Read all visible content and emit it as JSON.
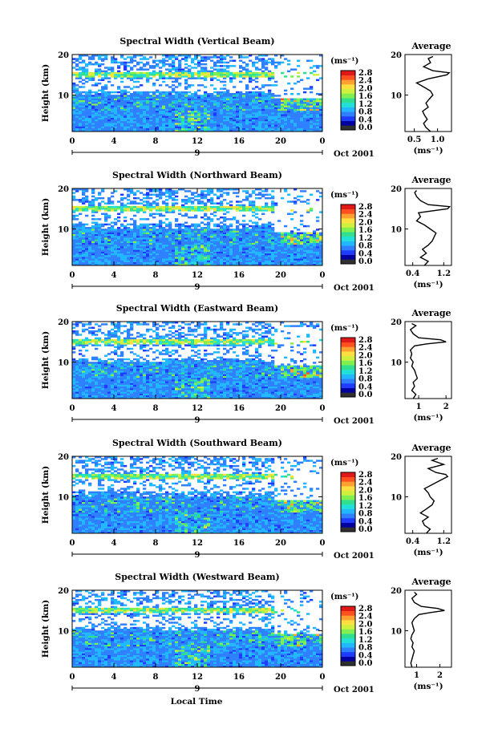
{
  "figure": {
    "xlabel": "Local Time",
    "panels": [
      {
        "title": "Spectral Width (Vertical Beam)",
        "avg_title": "Average",
        "avg_ticks": [
          "0.5",
          "1.0"
        ],
        "avg_xlabel": "(ms⁻¹)"
      },
      {
        "title": "Spectral Width (Northward Beam)",
        "avg_title": "Average",
        "avg_ticks": [
          "0.4",
          "1.2"
        ],
        "avg_xlabel": "(ms⁻¹)"
      },
      {
        "title": "Spectral Width (Eastward Beam)",
        "avg_title": "Average",
        "avg_ticks": [
          "1",
          "2"
        ],
        "avg_xlabel": "(ms⁻¹)"
      },
      {
        "title": "Spectral Width (Southward Beam)",
        "avg_title": "Average",
        "avg_ticks": [
          "0.4",
          "1.2"
        ],
        "avg_xlabel": "(ms⁻¹)"
      },
      {
        "title": "Spectral Width (Westward Beam)",
        "avg_title": "Average",
        "avg_ticks": [
          "1",
          "2"
        ],
        "avg_xlabel": "(ms⁻¹)"
      }
    ],
    "common": {
      "ylabel": "Height (km)",
      "yticks": [
        "10",
        "20"
      ],
      "xticks": [
        "0",
        "4",
        "8",
        "12",
        "16",
        "20",
        "0"
      ],
      "date_marker": "9",
      "date_label": "Oct 2001",
      "colorbar_unit": "(ms⁻¹)",
      "colorbar_ticks": [
        "0.0",
        "0.4",
        "0.8",
        "1.2",
        "1.6",
        "2.0",
        "2.4",
        "2.8"
      ]
    }
  },
  "colors": {
    "colormap": [
      "#303030",
      "#0000a0",
      "#1e3cff",
      "#2f80ff",
      "#22b8ff",
      "#22e0d8",
      "#30e090",
      "#80f050",
      "#d0f040",
      "#ffe040",
      "#ffa030",
      "#ff5020",
      "#e01818"
    ]
  },
  "chart_data": [
    {
      "type": "heatmap",
      "title": "Spectral Width (Vertical Beam)",
      "xlabel": "",
      "ylabel": "Height (km)",
      "unit": "ms⁻¹",
      "xlim": [
        0,
        24
      ],
      "ylim": [
        1,
        20
      ],
      "clim": [
        0,
        2.8
      ],
      "features": {
        "tropopause_km": 15,
        "gap_km": [
          11,
          14
        ]
      },
      "average": {
        "xlim": [
          0.3,
          1.3
        ],
        "ylim": [
          1,
          20
        ],
        "profile": [
          [
            1,
            0.85
          ],
          [
            2,
            0.75
          ],
          [
            3,
            0.7
          ],
          [
            4,
            0.78
          ],
          [
            5,
            0.72
          ],
          [
            6,
            0.68
          ],
          [
            7,
            0.8
          ],
          [
            8,
            0.75
          ],
          [
            9,
            0.82
          ],
          [
            10,
            0.9
          ],
          [
            11,
            0.85
          ],
          [
            12,
            0.7
          ],
          [
            13,
            0.55
          ],
          [
            14,
            0.8
          ],
          [
            15,
            1.2
          ],
          [
            15.5,
            1.25
          ],
          [
            16,
            0.9
          ],
          [
            17,
            0.7
          ],
          [
            18,
            0.85
          ],
          [
            19,
            0.8
          ],
          [
            19.5,
            0.9
          ]
        ]
      }
    },
    {
      "type": "heatmap",
      "title": "Spectral Width (Northward Beam)",
      "xlabel": "",
      "ylabel": "Height (km)",
      "unit": "ms⁻¹",
      "xlim": [
        0,
        24
      ],
      "ylim": [
        1,
        20
      ],
      "clim": [
        0,
        2.8
      ],
      "features": {
        "tropopause_km": 15,
        "gap_km": [
          11.5,
          14.5
        ]
      },
      "average": {
        "xlim": [
          0.2,
          1.4
        ],
        "ylim": [
          1,
          20
        ],
        "profile": [
          [
            1,
            0.7
          ],
          [
            2,
            0.8
          ],
          [
            3,
            0.6
          ],
          [
            4,
            0.75
          ],
          [
            5,
            0.65
          ],
          [
            6,
            0.8
          ],
          [
            7,
            0.9
          ],
          [
            8,
            0.95
          ],
          [
            9,
            1.0
          ],
          [
            10,
            0.85
          ],
          [
            11,
            0.7
          ],
          [
            12,
            0.5
          ],
          [
            13,
            0.6
          ],
          [
            14,
            0.55
          ],
          [
            15,
            1.3
          ],
          [
            15.5,
            1.35
          ],
          [
            16,
            0.8
          ],
          [
            17,
            0.6
          ],
          [
            18,
            0.5
          ],
          [
            19,
            0.45
          ],
          [
            19.5,
            0.5
          ]
        ]
      }
    },
    {
      "type": "heatmap",
      "title": "Spectral Width (Eastward Beam)",
      "xlabel": "",
      "ylabel": "Height (km)",
      "unit": "ms⁻¹",
      "xlim": [
        0,
        24
      ],
      "ylim": [
        1,
        20
      ],
      "clim": [
        0,
        2.8
      ],
      "features": {
        "tropopause_km": 15,
        "gap_km": [
          11,
          14
        ]
      },
      "average": {
        "xlim": [
          0.5,
          2.2
        ],
        "ylim": [
          1,
          20
        ],
        "profile": [
          [
            1,
            0.8
          ],
          [
            2,
            0.9
          ],
          [
            3,
            0.75
          ],
          [
            4,
            0.85
          ],
          [
            5,
            0.8
          ],
          [
            6,
            0.95
          ],
          [
            7,
            0.9
          ],
          [
            8,
            0.85
          ],
          [
            9,
            0.75
          ],
          [
            10,
            0.8
          ],
          [
            11,
            0.7
          ],
          [
            12,
            0.75
          ],
          [
            13,
            0.7
          ],
          [
            14,
            0.85
          ],
          [
            14.5,
            1.3
          ],
          [
            15,
            2.0
          ],
          [
            15.5,
            1.8
          ],
          [
            16,
            1.0
          ],
          [
            17,
            0.8
          ],
          [
            18,
            0.7
          ],
          [
            19,
            0.9
          ],
          [
            19.5,
            0.75
          ]
        ]
      }
    },
    {
      "type": "heatmap",
      "title": "Spectral Width (Southward Beam)",
      "xlabel": "",
      "ylabel": "Height (km)",
      "unit": "ms⁻¹",
      "xlim": [
        0,
        24
      ],
      "ylim": [
        1,
        20
      ],
      "clim": [
        0,
        2.8
      ],
      "features": {
        "tropopause_km": 15,
        "gap_km": [
          11.5,
          14.5
        ]
      },
      "average": {
        "xlim": [
          0.2,
          1.4
        ],
        "ylim": [
          1,
          20
        ],
        "profile": [
          [
            1,
            0.75
          ],
          [
            2,
            0.85
          ],
          [
            3,
            0.7
          ],
          [
            4,
            0.65
          ],
          [
            5,
            0.8
          ],
          [
            6,
            0.6
          ],
          [
            7,
            0.75
          ],
          [
            8,
            0.9
          ],
          [
            9,
            0.95
          ],
          [
            10,
            0.85
          ],
          [
            11,
            0.8
          ],
          [
            12,
            0.7
          ],
          [
            13,
            0.9
          ],
          [
            14,
            1.1
          ],
          [
            15,
            1.3
          ],
          [
            15.5,
            1.25
          ],
          [
            16,
            1.0
          ],
          [
            17,
            0.8
          ],
          [
            18,
            1.2
          ],
          [
            19,
            0.9
          ],
          [
            19.5,
            1.05
          ]
        ]
      }
    },
    {
      "type": "heatmap",
      "title": "Spectral Width (Westward Beam)",
      "xlabel": "",
      "ylabel": "Height (km)",
      "unit": "ms⁻¹",
      "xlim": [
        0,
        24
      ],
      "ylim": [
        1,
        20
      ],
      "clim": [
        0,
        2.8
      ],
      "features": {
        "tropopause_km": 15,
        "gap_km": [
          11,
          14
        ]
      },
      "average": {
        "xlim": [
          0.5,
          2.5
        ],
        "ylim": [
          1,
          20
        ],
        "profile": [
          [
            1,
            0.8
          ],
          [
            2,
            0.75
          ],
          [
            3,
            0.8
          ],
          [
            4,
            0.85
          ],
          [
            5,
            0.9
          ],
          [
            6,
            0.8
          ],
          [
            7,
            0.85
          ],
          [
            8,
            0.75
          ],
          [
            9,
            0.8
          ],
          [
            10,
            0.9
          ],
          [
            11,
            0.85
          ],
          [
            12,
            0.8
          ],
          [
            13,
            0.9
          ],
          [
            14,
            1.1
          ],
          [
            14.5,
            1.6
          ],
          [
            15,
            2.2
          ],
          [
            15.5,
            1.9
          ],
          [
            16,
            1.2
          ],
          [
            17,
            0.9
          ],
          [
            18,
            0.8
          ],
          [
            19,
            1.0
          ],
          [
            19.5,
            0.9
          ]
        ]
      }
    }
  ]
}
